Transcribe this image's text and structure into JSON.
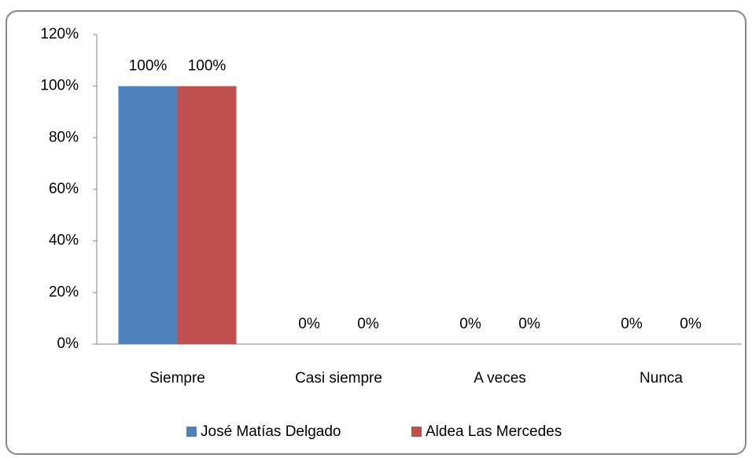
{
  "chart_data": {
    "type": "bar",
    "categories": [
      "Siempre",
      "Casi siempre",
      "A veces",
      "Nunca"
    ],
    "series": [
      {
        "name": "José Matías Delgado",
        "color": "#4f81bd",
        "values": [
          100,
          0,
          0,
          0
        ],
        "value_labels": [
          "100%",
          "0%",
          "0%",
          "0%"
        ]
      },
      {
        "name": "Aldea Las Mercedes",
        "color": "#c0504d",
        "values": [
          100,
          0,
          0,
          0
        ],
        "value_labels": [
          "100%",
          "0%",
          "0%",
          "0%"
        ]
      }
    ],
    "ylim": [
      0,
      120
    ],
    "yticks": [
      {
        "value": 0,
        "label": "0%"
      },
      {
        "value": 20,
        "label": "20%"
      },
      {
        "value": 40,
        "label": "40%"
      },
      {
        "value": 60,
        "label": "60%"
      },
      {
        "value": 80,
        "label": "80%"
      },
      {
        "value": 100,
        "label": "100%"
      },
      {
        "value": 120,
        "label": "120%"
      }
    ],
    "grid": false,
    "legend": "bottom"
  }
}
